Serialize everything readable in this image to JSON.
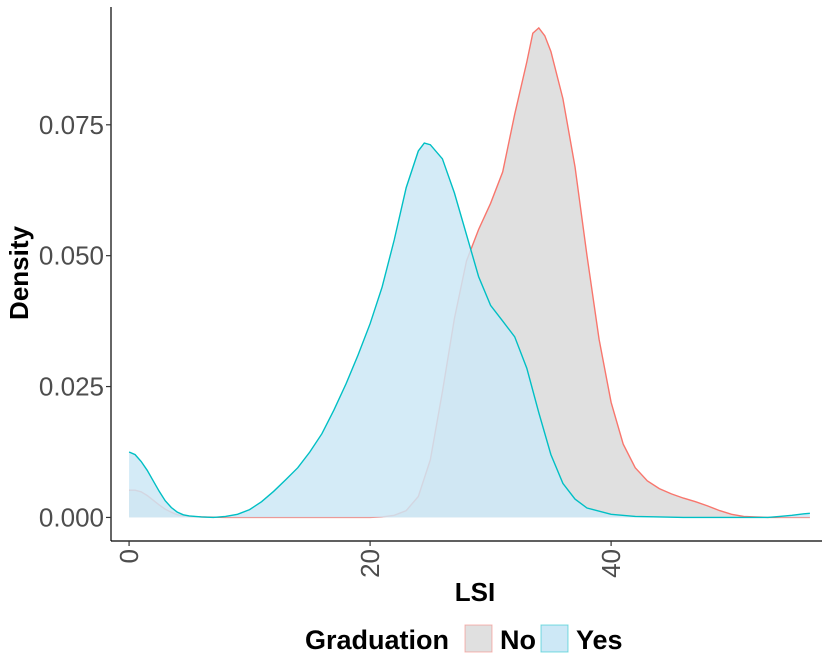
{
  "chart_data": {
    "type": "area",
    "title": "",
    "xlabel": "LSI",
    "ylabel": "Density",
    "xlim": [
      -1.5,
      57.5
    ],
    "ylim": [
      -0.0045,
      0.0975
    ],
    "x_ticks": [
      0,
      20,
      40
    ],
    "x_tick_labels": [
      "0",
      "20",
      "40"
    ],
    "y_ticks": [
      0,
      0.025,
      0.05,
      0.075
    ],
    "y_tick_labels": [
      "0.000",
      "0.025",
      "0.050",
      "0.075"
    ],
    "grid": false,
    "legend": {
      "title": "Graduation",
      "position": "bottom"
    },
    "series": [
      {
        "name": "No",
        "fill": "#e0e0e0",
        "line": "#f8766d",
        "points": [
          [
            0,
            0.0052
          ],
          [
            0.5,
            0.0052
          ],
          [
            1,
            0.0049
          ],
          [
            1.5,
            0.0042
          ],
          [
            2,
            0.0033
          ],
          [
            2.5,
            0.0024
          ],
          [
            3,
            0.0016
          ],
          [
            3.5,
            0.001
          ],
          [
            4,
            0.0005
          ],
          [
            5,
            0.0002
          ],
          [
            6,
            0.0001
          ],
          [
            8,
            0
          ],
          [
            12,
            0
          ],
          [
            16,
            0
          ],
          [
            19,
            0
          ],
          [
            20,
            0
          ],
          [
            21,
            0.0001
          ],
          [
            22,
            0.0004
          ],
          [
            23,
            0.0013
          ],
          [
            24,
            0.004
          ],
          [
            25,
            0.011
          ],
          [
            26,
            0.024
          ],
          [
            27,
            0.038
          ],
          [
            28,
            0.049
          ],
          [
            29,
            0.055
          ],
          [
            30,
            0.06
          ],
          [
            31,
            0.066
          ],
          [
            32,
            0.077
          ],
          [
            33,
            0.087
          ],
          [
            33.5,
            0.0925
          ],
          [
            34,
            0.0935
          ],
          [
            34.5,
            0.092
          ],
          [
            35,
            0.089
          ],
          [
            36,
            0.08
          ],
          [
            37,
            0.067
          ],
          [
            38,
            0.05
          ],
          [
            39,
            0.034
          ],
          [
            40,
            0.022
          ],
          [
            41,
            0.014
          ],
          [
            42,
            0.0095
          ],
          [
            43,
            0.007
          ],
          [
            44,
            0.0055
          ],
          [
            45,
            0.0045
          ],
          [
            46,
            0.0037
          ],
          [
            47,
            0.003
          ],
          [
            48,
            0.0022
          ],
          [
            49,
            0.0013
          ],
          [
            50,
            0.0006
          ],
          [
            51,
            0.0002
          ],
          [
            52,
            0.0001
          ],
          [
            53,
            0
          ],
          [
            56.5,
            0
          ]
        ]
      },
      {
        "name": "Yes",
        "fill": "#cde8f6",
        "line": "#00bfc4",
        "points": [
          [
            0,
            0.0125
          ],
          [
            0.5,
            0.012
          ],
          [
            1,
            0.0107
          ],
          [
            1.5,
            0.009
          ],
          [
            2,
            0.007
          ],
          [
            2.5,
            0.005
          ],
          [
            3,
            0.0032
          ],
          [
            3.5,
            0.0019
          ],
          [
            4,
            0.001
          ],
          [
            4.5,
            0.0005
          ],
          [
            5,
            0.0003
          ],
          [
            6,
            0.0001
          ],
          [
            7,
            0
          ],
          [
            8,
            0.0002
          ],
          [
            9,
            0.0006
          ],
          [
            10,
            0.0015
          ],
          [
            11,
            0.003
          ],
          [
            12,
            0.005
          ],
          [
            13,
            0.0072
          ],
          [
            14,
            0.0095
          ],
          [
            15,
            0.0125
          ],
          [
            16,
            0.016
          ],
          [
            17,
            0.0205
          ],
          [
            18,
            0.0255
          ],
          [
            19,
            0.031
          ],
          [
            20,
            0.037
          ],
          [
            21,
            0.044
          ],
          [
            22,
            0.053
          ],
          [
            23,
            0.063
          ],
          [
            24,
            0.07
          ],
          [
            24.5,
            0.0715
          ],
          [
            25,
            0.0712
          ],
          [
            26,
            0.0685
          ],
          [
            27,
            0.062
          ],
          [
            28,
            0.054
          ],
          [
            29,
            0.046
          ],
          [
            30,
            0.0405
          ],
          [
            31,
            0.0375
          ],
          [
            32,
            0.0345
          ],
          [
            33,
            0.0285
          ],
          [
            34,
            0.02
          ],
          [
            35,
            0.012
          ],
          [
            36,
            0.0065
          ],
          [
            37,
            0.0035
          ],
          [
            38,
            0.0018
          ],
          [
            40,
            0.0006
          ],
          [
            42,
            0.0002
          ],
          [
            44,
            0.0001
          ],
          [
            46,
            0
          ],
          [
            50,
            0
          ],
          [
            53,
            0
          ],
          [
            54,
            0.0002
          ],
          [
            55,
            0.0004
          ],
          [
            56,
            0.0007
          ],
          [
            56.5,
            0.0008
          ]
        ]
      }
    ]
  }
}
